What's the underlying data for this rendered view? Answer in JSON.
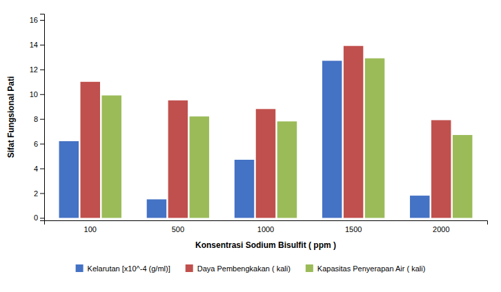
{
  "chart_data": {
    "type": "bar",
    "xlabel": "Konsentrasi Sodium Bisulfit ( ppm )",
    "ylabel": "Sifat Fungsional Pati",
    "categories": [
      "100",
      "500",
      "1000",
      "1500",
      "2000"
    ],
    "series": [
      {
        "name": "Kelarutan [x10^-4 (g/ml)]",
        "color": "#4472C4",
        "values": [
          6.2,
          1.5,
          4.7,
          12.7,
          1.8
        ]
      },
      {
        "name": "Daya Pembengkakan (  kali)",
        "color": "#C0504D",
        "values": [
          11.0,
          9.5,
          8.8,
          13.9,
          7.9
        ]
      },
      {
        "name": "Kapasitas Penyerapan Air (  kali)",
        "color": "#9BBB59",
        "values": [
          9.9,
          8.2,
          7.8,
          12.9,
          6.7
        ]
      }
    ],
    "ylim": [
      -0.2,
      16.5
    ],
    "yticks": [
      0,
      2,
      4,
      6,
      8,
      10,
      12,
      14,
      16
    ],
    "grid": false,
    "legend": "bottom"
  }
}
